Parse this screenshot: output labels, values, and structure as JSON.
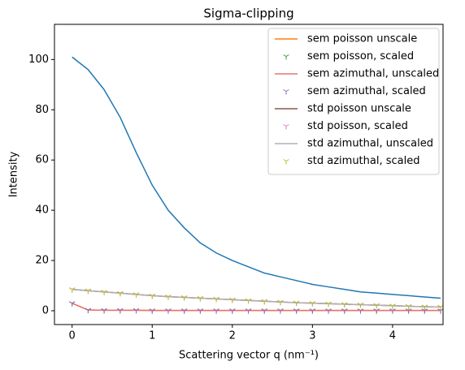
{
  "chart_data": {
    "type": "line",
    "title": "Sigma-clipping",
    "xlabel": "Scattering vector q (nm⁻¹)",
    "ylabel": "Intensity",
    "xlim": [
      -0.22,
      4.63
    ],
    "ylim": [
      -5.5,
      114
    ],
    "xticks": [
      0,
      1,
      2,
      3,
      4
    ],
    "yticks": [
      0,
      20,
      40,
      60,
      80,
      100
    ],
    "legend": "upper right",
    "x": [
      0,
      0.2,
      0.4,
      0.6,
      0.8,
      1.0,
      1.2,
      1.4,
      1.6,
      1.8,
      2.0,
      2.2,
      2.4,
      2.6,
      2.8,
      3.0,
      3.2,
      3.4,
      3.6,
      3.8,
      4.0,
      4.2,
      4.4,
      4.6
    ],
    "series": [
      {
        "color": "#1f77b4",
        "style": "line",
        "values": [
          101,
          96,
          88,
          77,
          63,
          50,
          40,
          33,
          27,
          23,
          20,
          17.5,
          15,
          13.5,
          12,
          10.5,
          9.5,
          8.5,
          7.5,
          7,
          6.5,
          6,
          5.5,
          5
        ]
      },
      {
        "name": "sem poisson unscale",
        "color": "#ff7f0e",
        "style": "line",
        "values": [
          3,
          0.3,
          0.2,
          0.2,
          0.2,
          0.1,
          0.1,
          0.1,
          0.1,
          0.1,
          0.1,
          0.1,
          0.1,
          0.1,
          0.1,
          0.1,
          0.1,
          0.1,
          0.1,
          0.1,
          0.1,
          0.1,
          0.1,
          0.1
        ]
      },
      {
        "name": "sem poisson, scaled",
        "color": "#2ca02c",
        "style": "marker",
        "values": [
          3,
          0.3,
          0.2,
          0.2,
          0.2,
          0.1,
          0.1,
          0.1,
          0.1,
          0.1,
          0.1,
          0.1,
          0.1,
          0.1,
          0.1,
          0.1,
          0.1,
          0.1,
          0.1,
          0.1,
          0.1,
          0.1,
          0.1,
          0.1
        ]
      },
      {
        "name": "sem azimuthal, unscaled",
        "color": "#e57373",
        "style": "line",
        "values": [
          3,
          0.3,
          0.2,
          0.2,
          0.2,
          0.1,
          0.1,
          0.1,
          0.1,
          0.1,
          0.1,
          0.1,
          0.1,
          0.1,
          0.1,
          0.1,
          0.1,
          0.1,
          0.1,
          0.1,
          0.1,
          0.1,
          0.1,
          0.1
        ]
      },
      {
        "name": "sem azimuthal, scaled",
        "color": "#9467bd",
        "style": "marker",
        "values": [
          3,
          0.3,
          0.2,
          0.2,
          0.2,
          0.1,
          0.1,
          0.1,
          0.1,
          0.1,
          0.1,
          0.1,
          0.1,
          0.1,
          0.1,
          0.1,
          0.1,
          0.1,
          0.1,
          0.1,
          0.1,
          0.1,
          0.1,
          0.1
        ]
      },
      {
        "name": "std poisson unscale",
        "color": "#8c564b",
        "style": "line",
        "values": [
          8.5,
          8,
          7.5,
          7,
          6.5,
          6,
          5.6,
          5.3,
          5,
          4.7,
          4.4,
          4.1,
          3.8,
          3.5,
          3.2,
          3,
          2.8,
          2.6,
          2.4,
          2.2,
          2,
          1.8,
          1.6,
          1.5
        ]
      },
      {
        "name": "std poisson, scaled",
        "color": "#e377c2",
        "style": "marker",
        "values": [
          8.5,
          8,
          7.5,
          7,
          6.5,
          6,
          5.6,
          5.3,
          5,
          4.7,
          4.4,
          4.1,
          3.8,
          3.5,
          3.2,
          3,
          2.8,
          2.6,
          2.4,
          2.2,
          2,
          1.8,
          1.6,
          1.5
        ]
      },
      {
        "name": "std azimuthal, unscaled",
        "color": "#b0b0b0",
        "style": "line",
        "values": [
          8.5,
          8,
          7.5,
          7,
          6.5,
          6,
          5.6,
          5.3,
          5,
          4.7,
          4.4,
          4.1,
          3.8,
          3.5,
          3.2,
          3,
          2.8,
          2.6,
          2.4,
          2.2,
          2,
          1.8,
          1.6,
          1.5
        ]
      },
      {
        "name": "std azimuthal, scaled",
        "color": "#bcbd22",
        "style": "marker",
        "values": [
          8.5,
          8,
          7.5,
          7,
          6.5,
          6,
          5.6,
          5.3,
          5,
          4.7,
          4.4,
          4.1,
          3.8,
          3.5,
          3.2,
          3,
          2.8,
          2.6,
          2.4,
          2.2,
          2,
          1.8,
          1.6,
          1.5
        ]
      }
    ]
  }
}
